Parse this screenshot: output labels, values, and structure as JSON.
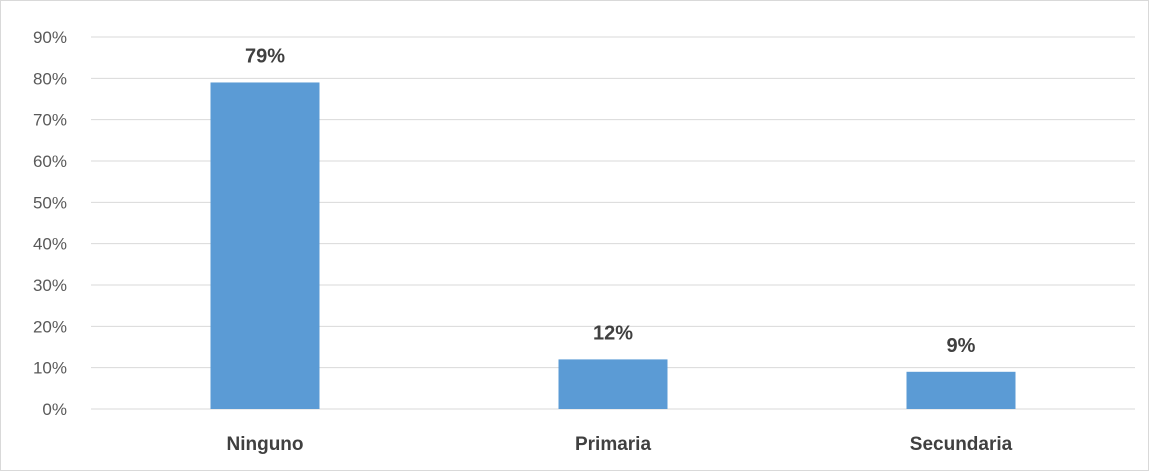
{
  "chart_data": {
    "type": "bar",
    "categories": [
      "Ninguno",
      "Primaria",
      "Secundaria"
    ],
    "values": [
      79,
      12,
      9
    ],
    "data_labels": [
      "79%",
      "12%",
      "9%"
    ],
    "y_ticks": [
      "0%",
      "10%",
      "20%",
      "30%",
      "40%",
      "50%",
      "60%",
      "70%",
      "80%",
      "90%"
    ],
    "title": "",
    "xlabel": "",
    "ylabel": "",
    "ylim": [
      0,
      90
    ],
    "grid": true,
    "legend": "none",
    "colors": {
      "bar": "#5b9bd5",
      "grid": "#d9d9d9",
      "tick_text": "#595959",
      "label_text": "#404040"
    }
  }
}
